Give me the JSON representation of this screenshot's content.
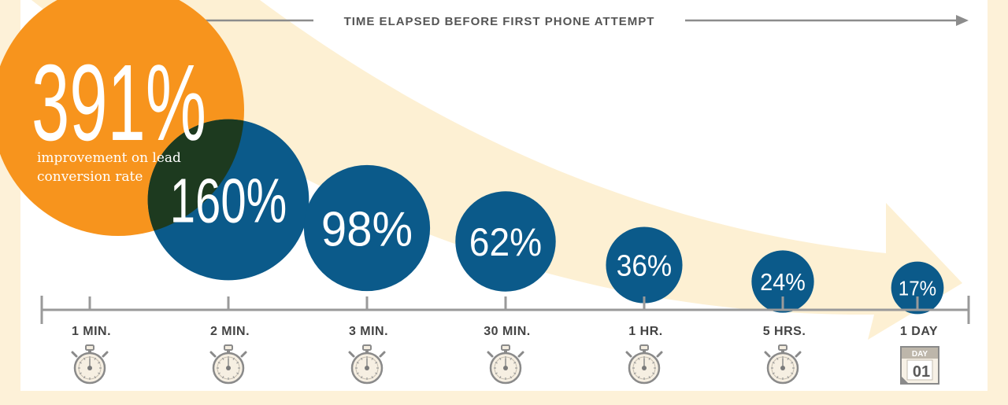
{
  "chart_data": {
    "type": "scatter",
    "title": "TIME ELAPSED BEFORE FIRST PHONE ATTEMPT",
    "xlabel": "",
    "ylabel": "",
    "categories": [
      "1 MIN.",
      "2 MIN.",
      "3 MIN.",
      "30 MIN.",
      "1 HR.",
      "5 HRS.",
      "1 DAY"
    ],
    "values": [
      391,
      160,
      98,
      62,
      36,
      24,
      17
    ],
    "value_labels": [
      "391%",
      "160%",
      "98%",
      "62%",
      "36%",
      "24%",
      "17%"
    ],
    "annotation": "improvement on lead conversion rate",
    "grid": false,
    "legend": "none"
  },
  "colors": {
    "background": "#fdf1d8",
    "panel": "#ffffff",
    "highlight_bubble": "#f7941d",
    "bubble": "#0b5a8a",
    "overlap": "#1d3a1f",
    "arrow_band": "#fdf0d3",
    "axis": "#9a9a9a"
  },
  "icons": {
    "stopwatch": "stopwatch-icon",
    "calendar": "calendar-icon",
    "calendar_text": "DAY",
    "calendar_number": "01"
  }
}
